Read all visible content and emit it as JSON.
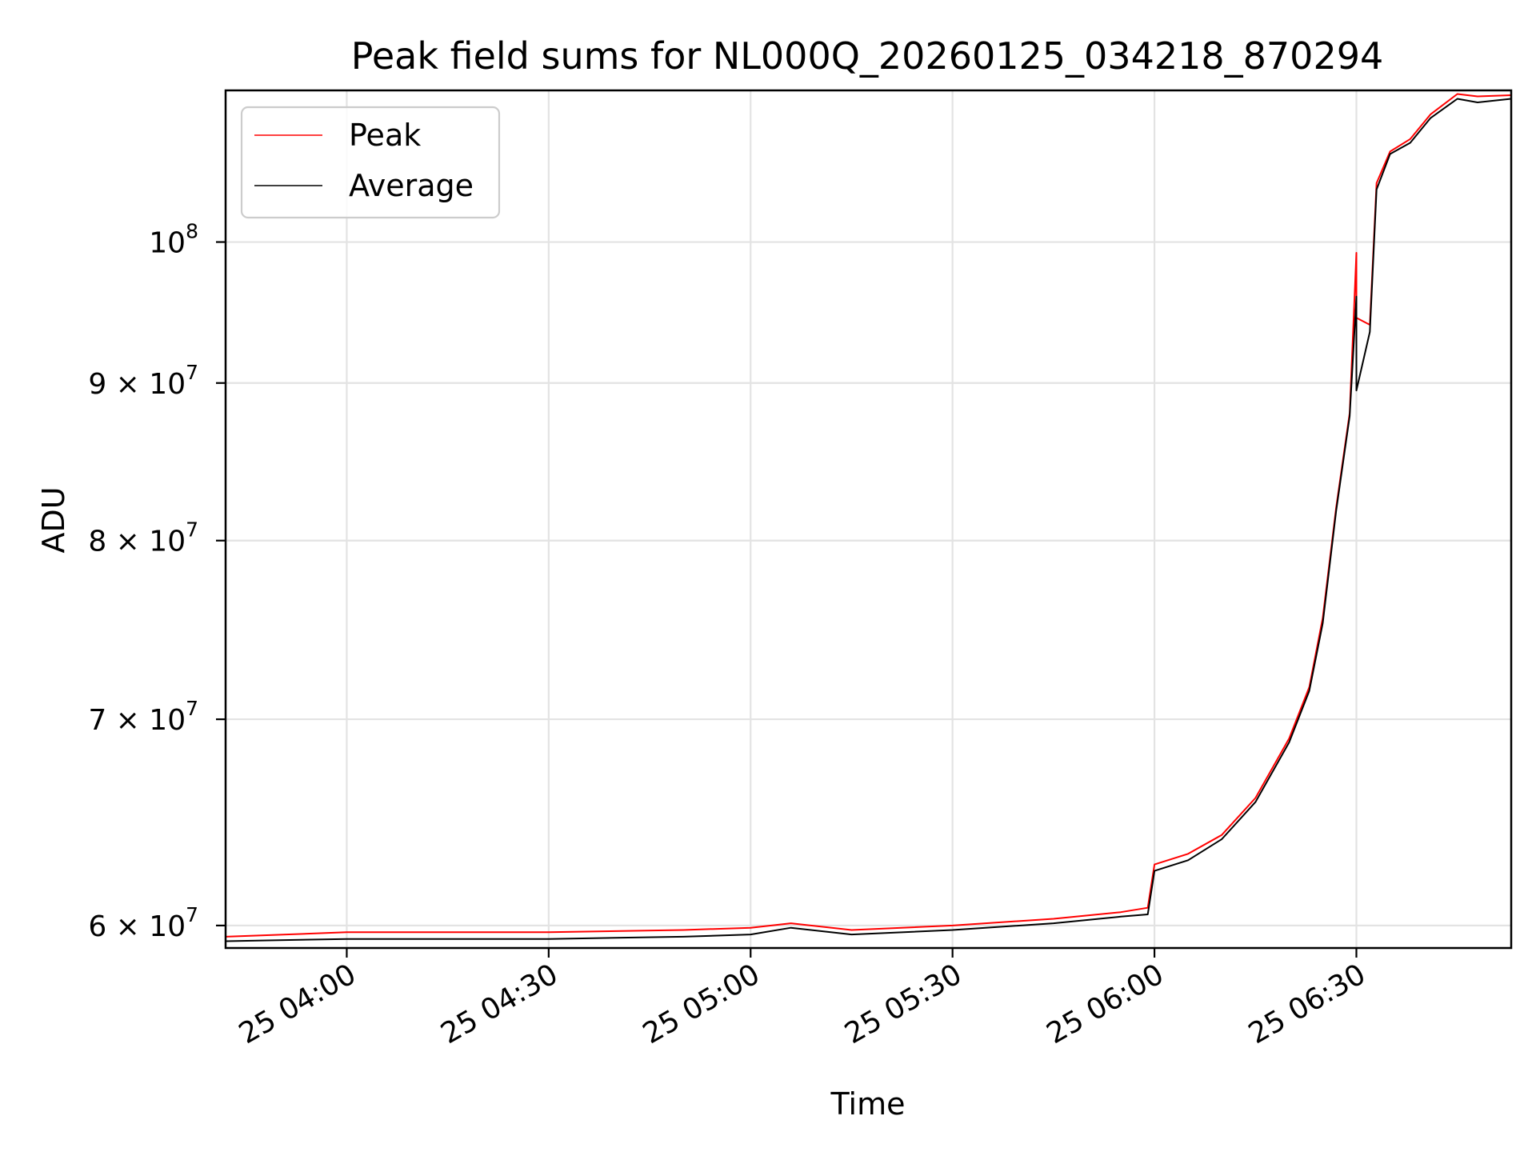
{
  "chart_data": {
    "type": "line",
    "title": "Peak field sums for NL000Q_20260125_034218_870294",
    "xlabel": "Time",
    "ylabel": "ADU",
    "x_range": [
      "2026-01-25 03:42",
      "2026-01-25 06:53"
    ],
    "y_scale": "log",
    "ylim": [
      59000000,
      112000000
    ],
    "grid": true,
    "legend_position": "upper-left",
    "x_ticks": [
      {
        "value": "2026-01-25 04:00",
        "label": "25 04:00"
      },
      {
        "value": "2026-01-25 04:30",
        "label": "25 04:30"
      },
      {
        "value": "2026-01-25 05:00",
        "label": "25 05:00"
      },
      {
        "value": "2026-01-25 05:30",
        "label": "25 05:30"
      },
      {
        "value": "2026-01-25 06:00",
        "label": "25 06:00"
      },
      {
        "value": "2026-01-25 06:30",
        "label": "25 06:30"
      }
    ],
    "y_ticks": [
      {
        "value": 100000000,
        "base": "10",
        "exp": "8"
      },
      {
        "value": 90000000,
        "base": "9 × 10",
        "exp": "7"
      },
      {
        "value": 80000000,
        "base": "8 × 10",
        "exp": "7"
      },
      {
        "value": 70000000,
        "base": "7 × 10",
        "exp": "7"
      },
      {
        "value": 60000000,
        "base": "6 × 10",
        "exp": "7"
      }
    ],
    "series": [
      {
        "name": "Peak",
        "color": "#ff0000",
        "x": [
          "2026-01-25 03:42",
          "2026-01-25 04:00",
          "2026-01-25 04:30",
          "2026-01-25 04:50",
          "2026-01-25 05:00",
          "2026-01-25 05:06",
          "2026-01-25 05:15",
          "2026-01-25 05:30",
          "2026-01-25 05:45",
          "2026-01-25 05:55",
          "2026-01-25 05:59",
          "2026-01-25 06:00",
          "2026-01-25 06:05",
          "2026-01-25 06:10",
          "2026-01-25 06:15",
          "2026-01-25 06:20",
          "2026-01-25 06:23",
          "2026-01-25 06:25",
          "2026-01-25 06:27",
          "2026-01-25 06:29",
          "2026-01-25 06:30",
          "2026-01-25 06:30",
          "2026-01-25 06:32",
          "2026-01-25 06:33",
          "2026-01-25 06:35",
          "2026-01-25 06:38",
          "2026-01-25 06:41",
          "2026-01-25 06:45",
          "2026-01-25 06:48",
          "2026-01-25 06:53"
        ],
        "values": [
          59500000,
          59700000,
          59700000,
          59800000,
          59900000,
          60100000,
          59800000,
          60000000,
          60300000,
          60600000,
          60800000,
          62800000,
          63300000,
          64200000,
          66000000,
          69000000,
          71700000,
          75500000,
          82000000,
          88000000,
          99200000,
          94500000,
          94000000,
          104500000,
          107000000,
          108000000,
          110000000,
          111700000,
          111500000,
          111600000
        ]
      },
      {
        "name": "Average",
        "color": "#000000",
        "x": [
          "2026-01-25 03:42",
          "2026-01-25 04:00",
          "2026-01-25 04:30",
          "2026-01-25 04:50",
          "2026-01-25 05:00",
          "2026-01-25 05:06",
          "2026-01-25 05:15",
          "2026-01-25 05:30",
          "2026-01-25 05:45",
          "2026-01-25 05:55",
          "2026-01-25 05:59",
          "2026-01-25 06:00",
          "2026-01-25 06:05",
          "2026-01-25 06:10",
          "2026-01-25 06:15",
          "2026-01-25 06:20",
          "2026-01-25 06:23",
          "2026-01-25 06:25",
          "2026-01-25 06:27",
          "2026-01-25 06:29",
          "2026-01-25 06:30",
          "2026-01-25 06:30",
          "2026-01-25 06:32",
          "2026-01-25 06:33",
          "2026-01-25 06:35",
          "2026-01-25 06:38",
          "2026-01-25 06:41",
          "2026-01-25 06:45",
          "2026-01-25 06:48",
          "2026-01-25 06:53"
        ],
        "values": [
          59300000,
          59400000,
          59400000,
          59500000,
          59600000,
          59900000,
          59600000,
          59800000,
          60100000,
          60400000,
          60500000,
          62500000,
          63000000,
          64000000,
          65800000,
          68800000,
          71500000,
          75200000,
          81800000,
          87800000,
          96000000,
          89500000,
          93500000,
          104000000,
          106800000,
          107700000,
          109700000,
          111300000,
          111000000,
          111300000
        ]
      }
    ]
  }
}
